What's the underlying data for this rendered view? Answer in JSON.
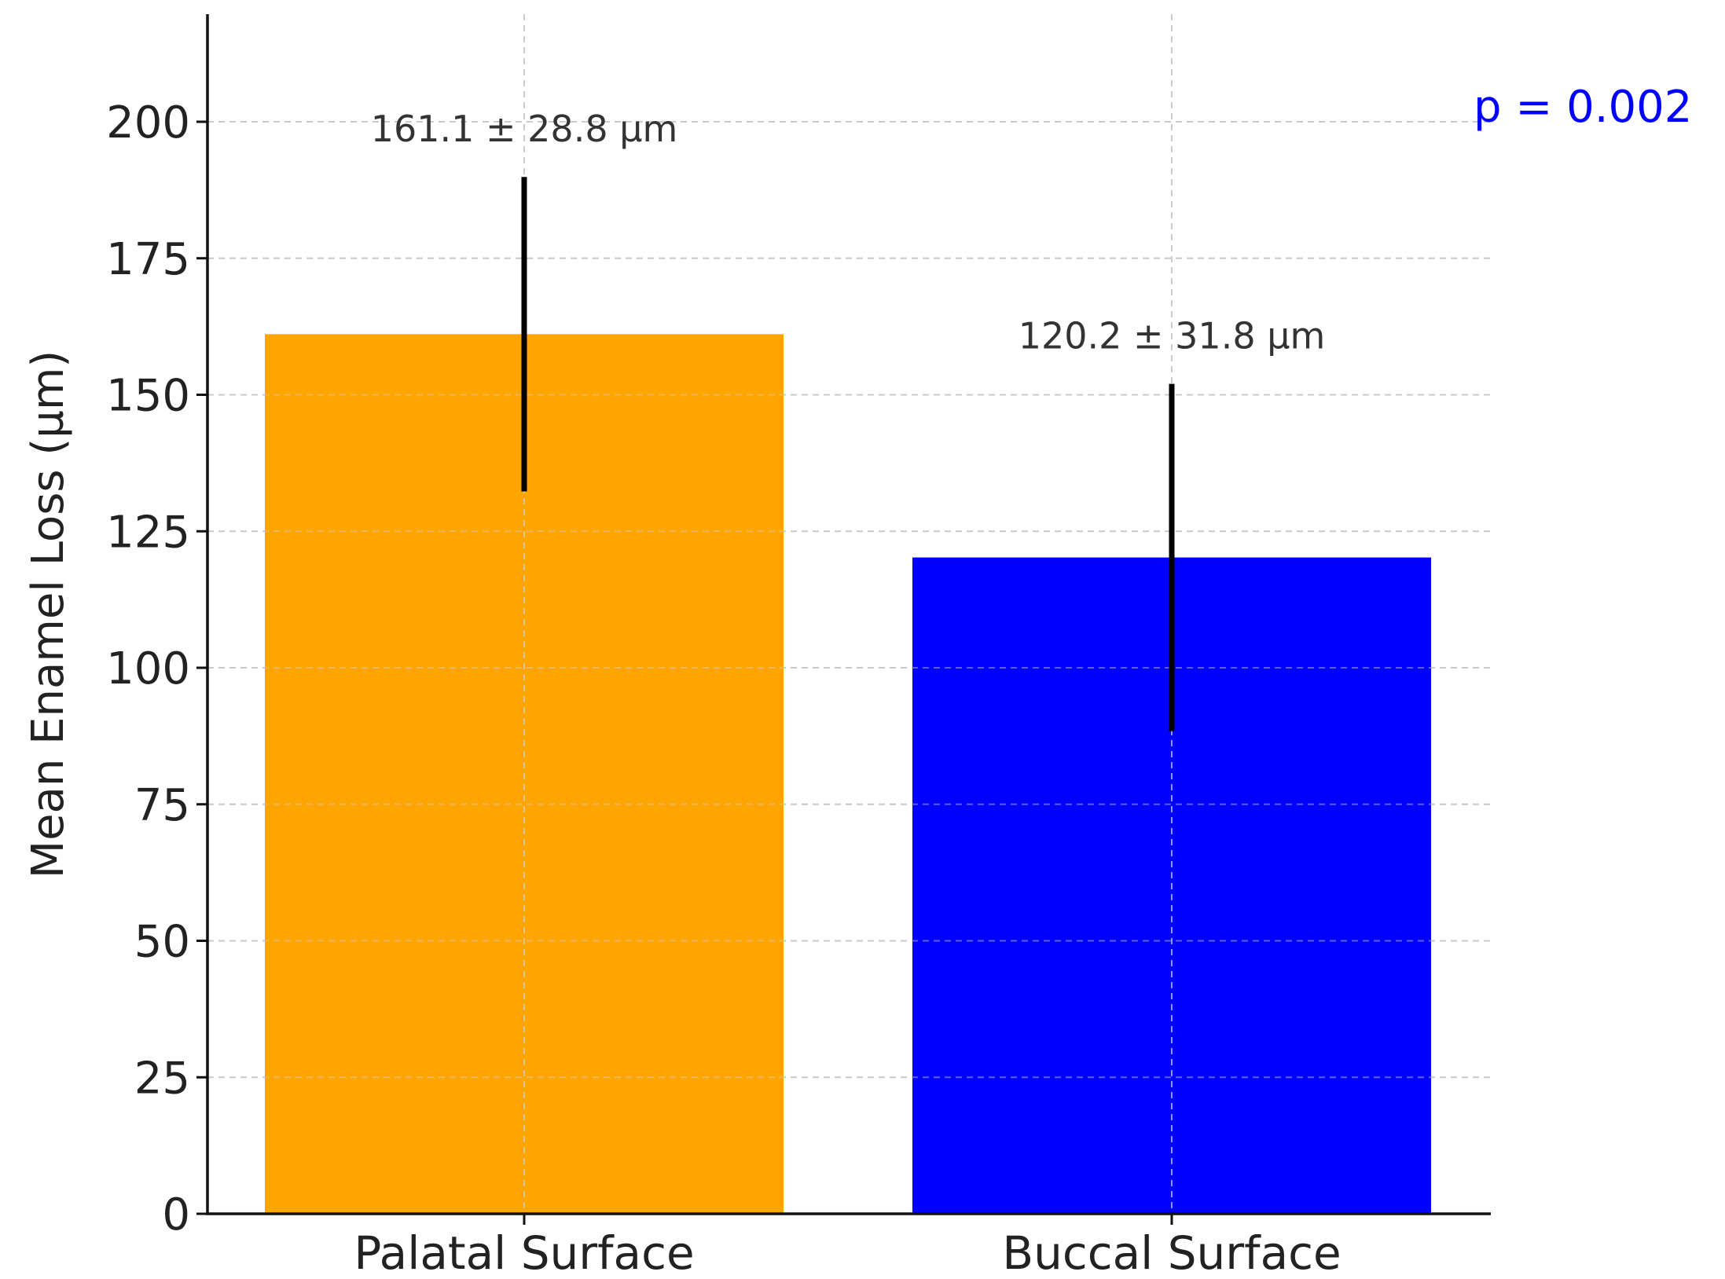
{
  "chart_data": {
    "type": "bar",
    "title": "",
    "xlabel": "",
    "ylabel": "Mean Enamel Loss (µm)",
    "ylim": [
      0,
      220
    ],
    "yticks": [
      "0",
      "25",
      "50",
      "75",
      "100",
      "125",
      "150",
      "175",
      "200"
    ],
    "categories": [
      "Palatal Surface",
      "Buccal Surface"
    ],
    "values": [
      161.1,
      120.2
    ],
    "errors": [
      28.8,
      31.8
    ],
    "colors": [
      "#FFA500",
      "#0000FF"
    ],
    "value_labels": [
      "161.1 ± 28.8 µm",
      "120.2 ± 31.8 µm"
    ],
    "annotation": "p = 0.002",
    "annotation_color": "#0000FF",
    "grid": true
  }
}
